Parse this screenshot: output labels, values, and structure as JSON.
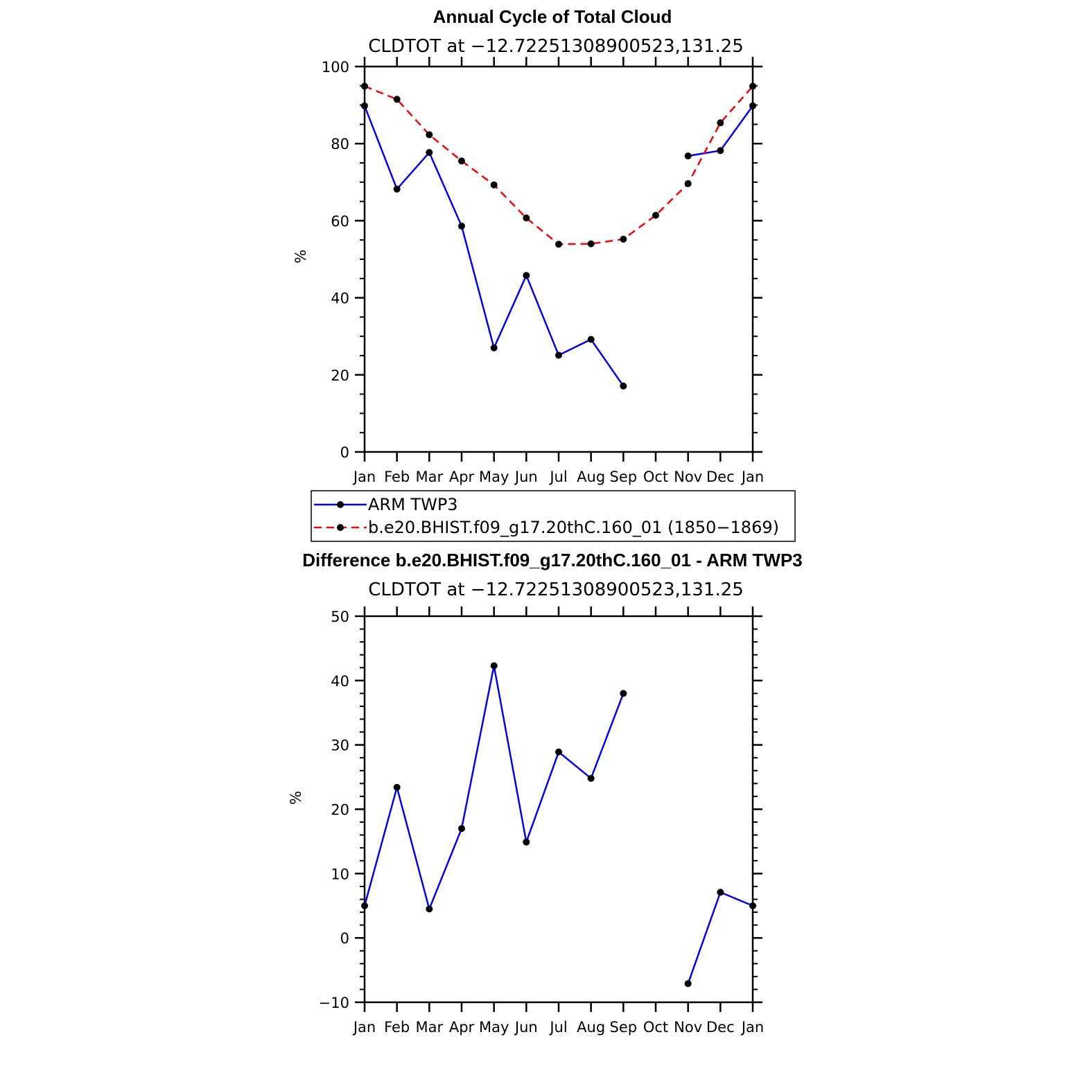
{
  "chart_data": [
    {
      "type": "line",
      "title": "Annual Cycle of Total Cloud",
      "subtitle": "CLDTOT at −12.72251308900523,131.25",
      "ylabel": "%",
      "xlabel": "",
      "ylim": [
        0,
        100
      ],
      "yticks": [
        "0",
        "20",
        "40",
        "60",
        "80",
        "100"
      ],
      "yminor_step": 5,
      "categories": [
        "Jan",
        "Feb",
        "Mar",
        "Apr",
        "May",
        "Jun",
        "Jul",
        "Aug",
        "Sep",
        "Oct",
        "Nov",
        "Dec",
        "Jan"
      ],
      "series": [
        {
          "name": "ARM TWP3",
          "color": "#0000ff",
          "dash": "solid",
          "values": [
            89.8,
            68.2,
            77.7,
            58.6,
            27.0,
            45.8,
            25.1,
            29.2,
            17.1,
            null,
            76.8,
            78.2,
            89.8
          ]
        },
        {
          "name": "b.e20.BHIST.f09_g17.20thC.160_01 (1850−1869)",
          "color": "#ff0000",
          "dash": "dashed",
          "values": [
            94.9,
            91.5,
            82.3,
            75.5,
            69.3,
            60.7,
            53.9,
            54.0,
            55.2,
            61.4,
            69.6,
            85.4,
            94.9
          ]
        }
      ],
      "legend_position": "below"
    },
    {
      "type": "line",
      "title": "Difference b.e20.BHIST.f09_g17.20thC.160_01 - ARM TWP3",
      "subtitle": "CLDTOT at −12.72251308900523,131.25",
      "ylabel": "%",
      "xlabel": "",
      "ylim": [
        -10,
        50
      ],
      "yticks": [
        "−10",
        "0",
        "10",
        "20",
        "30",
        "40",
        "50"
      ],
      "yminor_step": 2,
      "categories": [
        "Jan",
        "Feb",
        "Mar",
        "Apr",
        "May",
        "Jun",
        "Jul",
        "Aug",
        "Sep",
        "Oct",
        "Nov",
        "Dec",
        "Jan"
      ],
      "series": [
        {
          "name": "Difference",
          "color": "#0000ff",
          "dash": "solid",
          "values": [
            5.0,
            23.4,
            4.5,
            17.0,
            42.3,
            14.9,
            28.9,
            24.8,
            38.0,
            null,
            -7.1,
            7.1,
            5.0
          ]
        }
      ]
    }
  ]
}
